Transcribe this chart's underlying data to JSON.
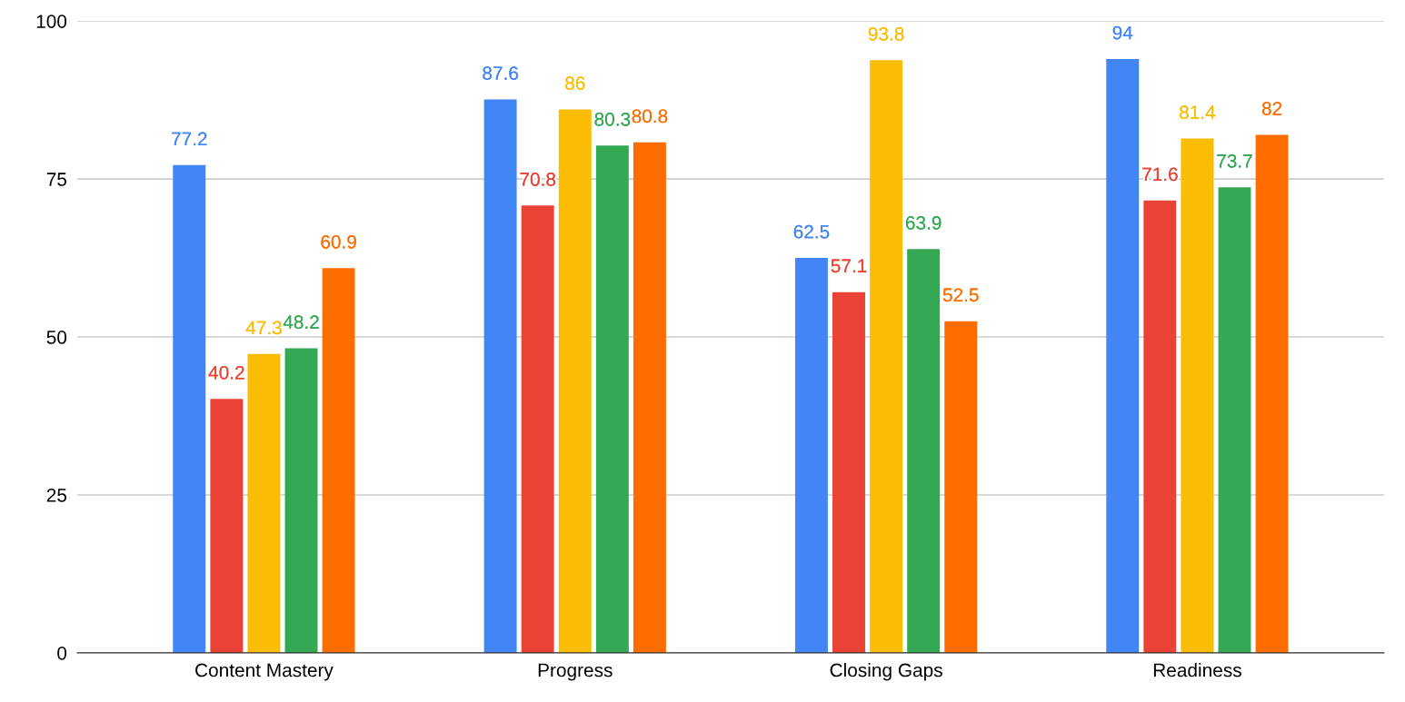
{
  "chart_data": {
    "type": "bar",
    "categories": [
      "Content Mastery",
      "Progress",
      "Closing Gaps",
      "Readiness"
    ],
    "series": [
      {
        "color": "#4285f4",
        "values": [
          77.2,
          87.6,
          62.5,
          94
        ]
      },
      {
        "color": "#ea4335",
        "values": [
          40.2,
          70.8,
          57.1,
          71.6
        ]
      },
      {
        "color": "#fbbc04",
        "values": [
          47.3,
          86,
          93.8,
          81.4
        ]
      },
      {
        "color": "#34a853",
        "values": [
          48.2,
          80.3,
          63.9,
          73.7
        ]
      },
      {
        "color": "#ff6d01",
        "values": [
          60.9,
          80.8,
          52.5,
          82
        ]
      }
    ],
    "ylim": [
      0,
      100
    ],
    "yticks": [
      0,
      25,
      50,
      75,
      100
    ],
    "grid": "y",
    "data_labels": true,
    "legend": false
  }
}
